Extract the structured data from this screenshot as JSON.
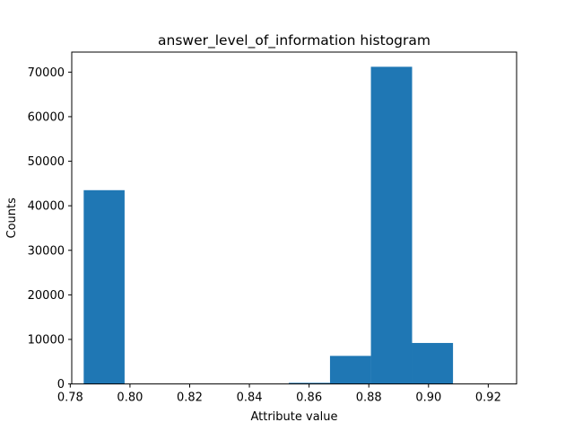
{
  "chart_data": {
    "type": "bar",
    "title": "answer_level_of_information histogram",
    "xlabel": "Attribute value",
    "ylabel": "Counts",
    "bar_color": "#1f77b4",
    "xlim": [
      0.7805,
      0.9295
    ],
    "ylim": [
      0,
      74500
    ],
    "xticks": [
      {
        "value": 0.78,
        "label": "0.78"
      },
      {
        "value": 0.8,
        "label": "0.80"
      },
      {
        "value": 0.82,
        "label": "0.82"
      },
      {
        "value": 0.84,
        "label": "0.84"
      },
      {
        "value": 0.86,
        "label": "0.86"
      },
      {
        "value": 0.88,
        "label": "0.88"
      },
      {
        "value": 0.9,
        "label": "0.90"
      },
      {
        "value": 0.92,
        "label": "0.92"
      }
    ],
    "yticks": [
      {
        "value": 0,
        "label": "0"
      },
      {
        "value": 10000,
        "label": "10000"
      },
      {
        "value": 20000,
        "label": "20000"
      },
      {
        "value": 30000,
        "label": "30000"
      },
      {
        "value": 40000,
        "label": "40000"
      },
      {
        "value": 50000,
        "label": "50000"
      },
      {
        "value": 60000,
        "label": "60000"
      },
      {
        "value": 70000,
        "label": "70000"
      }
    ],
    "bins": [
      {
        "x0": 0.7845,
        "x1": 0.7982,
        "count": 43500
      },
      {
        "x0": 0.7982,
        "x1": 0.812,
        "count": 0
      },
      {
        "x0": 0.812,
        "x1": 0.8257,
        "count": 0
      },
      {
        "x0": 0.8257,
        "x1": 0.8395,
        "count": 0
      },
      {
        "x0": 0.8395,
        "x1": 0.8532,
        "count": 0
      },
      {
        "x0": 0.8532,
        "x1": 0.867,
        "count": 250
      },
      {
        "x0": 0.867,
        "x1": 0.8807,
        "count": 6300
      },
      {
        "x0": 0.8807,
        "x1": 0.8945,
        "count": 71200
      },
      {
        "x0": 0.8945,
        "x1": 0.9082,
        "count": 9200
      },
      {
        "x0": 0.9082,
        "x1": 0.922,
        "count": 0
      }
    ]
  }
}
